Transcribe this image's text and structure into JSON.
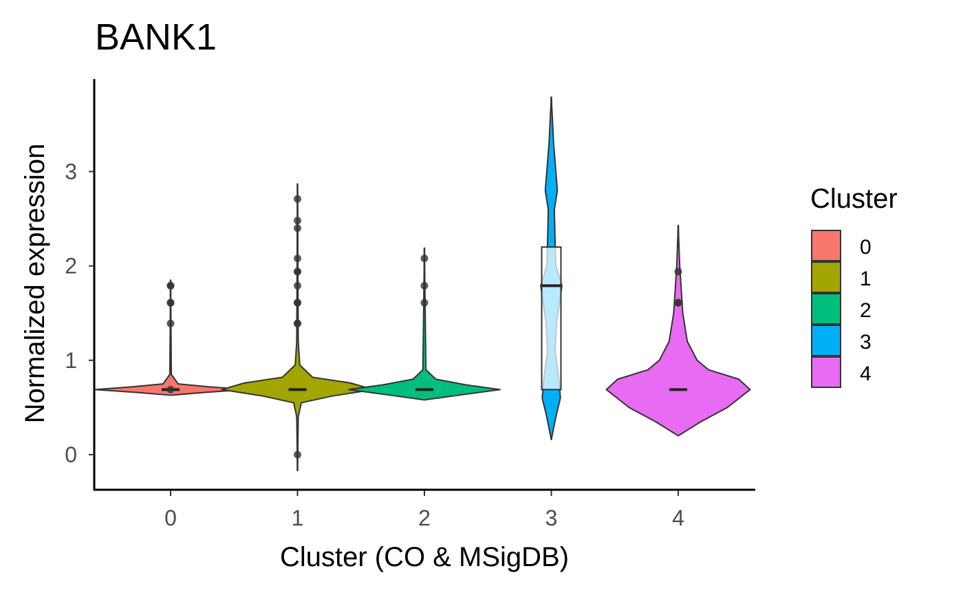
{
  "chart_data": {
    "type": "violin",
    "title": "BANK1",
    "xlabel": "Cluster (CO & MSigDB)",
    "ylabel": "Normalized expression",
    "categories": [
      "0",
      "1",
      "2",
      "3",
      "4"
    ],
    "x_ticks": [
      "0",
      "1",
      "2",
      "3",
      "4"
    ],
    "y_ticks": [
      "0",
      "1",
      "2",
      "3"
    ],
    "ylim": [
      -0.37,
      4.0
    ],
    "grid": false,
    "legend": {
      "title": "Cluster",
      "placement": "right",
      "entries": [
        "0",
        "1",
        "2",
        "3",
        "4"
      ]
    },
    "colors": [
      "#F8766D",
      "#A3A500",
      "#00BF7D",
      "#00B0F6",
      "#E76BF3"
    ],
    "series": [
      {
        "category": "0",
        "range": [
          0.63,
          1.85
        ],
        "median": 0.69,
        "density": [
          [
            0.63,
            0.0
          ],
          [
            0.66,
            0.45
          ],
          [
            0.69,
            1.0
          ],
          [
            0.72,
            0.5
          ],
          [
            0.75,
            0.1
          ],
          [
            0.85,
            0.01
          ],
          [
            1.85,
            0.0
          ]
        ],
        "points": [
          0.69,
          1.39,
          1.61,
          1.61,
          1.79,
          1.79
        ]
      },
      {
        "category": "1",
        "range": [
          -0.17,
          2.87
        ],
        "median": 0.69,
        "density": [
          [
            -0.17,
            0.0
          ],
          [
            0.4,
            0.01
          ],
          [
            0.55,
            0.05
          ],
          [
            0.62,
            0.45
          ],
          [
            0.69,
            1.0
          ],
          [
            0.76,
            0.7
          ],
          [
            0.82,
            0.2
          ],
          [
            0.95,
            0.03
          ],
          [
            1.2,
            0.01
          ],
          [
            2.87,
            0.0
          ]
        ],
        "points": [
          0.0,
          1.39,
          1.39,
          1.61,
          1.61,
          1.79,
          1.94,
          1.94,
          2.08,
          2.4,
          2.48,
          2.71
        ]
      },
      {
        "category": "2",
        "range": [
          0.58,
          2.19
        ],
        "median": 0.69,
        "density": [
          [
            0.58,
            0.0
          ],
          [
            0.63,
            0.45
          ],
          [
            0.69,
            1.0
          ],
          [
            0.74,
            0.55
          ],
          [
            0.8,
            0.15
          ],
          [
            0.9,
            0.02
          ],
          [
            2.19,
            0.0
          ]
        ],
        "points": [
          1.61,
          1.79,
          2.08
        ]
      },
      {
        "category": "3",
        "range": [
          0.16,
          3.79
        ],
        "median": 1.79,
        "box": {
          "q1": 0.69,
          "median": 1.79,
          "q3": 2.2
        },
        "density": [
          [
            0.16,
            0.0
          ],
          [
            0.4,
            0.06
          ],
          [
            0.6,
            0.12
          ],
          [
            0.8,
            0.1
          ],
          [
            1.1,
            0.05
          ],
          [
            1.4,
            0.07
          ],
          [
            1.79,
            0.14
          ],
          [
            2.0,
            0.06
          ],
          [
            2.25,
            0.05
          ],
          [
            2.6,
            0.04
          ],
          [
            2.8,
            0.08
          ],
          [
            3.0,
            0.06
          ],
          [
            3.3,
            0.03
          ],
          [
            3.79,
            0.0
          ]
        ],
        "points": []
      },
      {
        "category": "4",
        "range": [
          0.2,
          2.43
        ],
        "median": 0.69,
        "density": [
          [
            0.2,
            0.0
          ],
          [
            0.35,
            0.3
          ],
          [
            0.5,
            0.65
          ],
          [
            0.69,
            0.95
          ],
          [
            0.8,
            0.8
          ],
          [
            0.9,
            0.4
          ],
          [
            1.0,
            0.25
          ],
          [
            1.2,
            0.12
          ],
          [
            1.5,
            0.06
          ],
          [
            2.0,
            0.02
          ],
          [
            2.43,
            0.0
          ]
        ],
        "points": [
          1.61,
          1.61,
          1.94
        ]
      }
    ]
  }
}
